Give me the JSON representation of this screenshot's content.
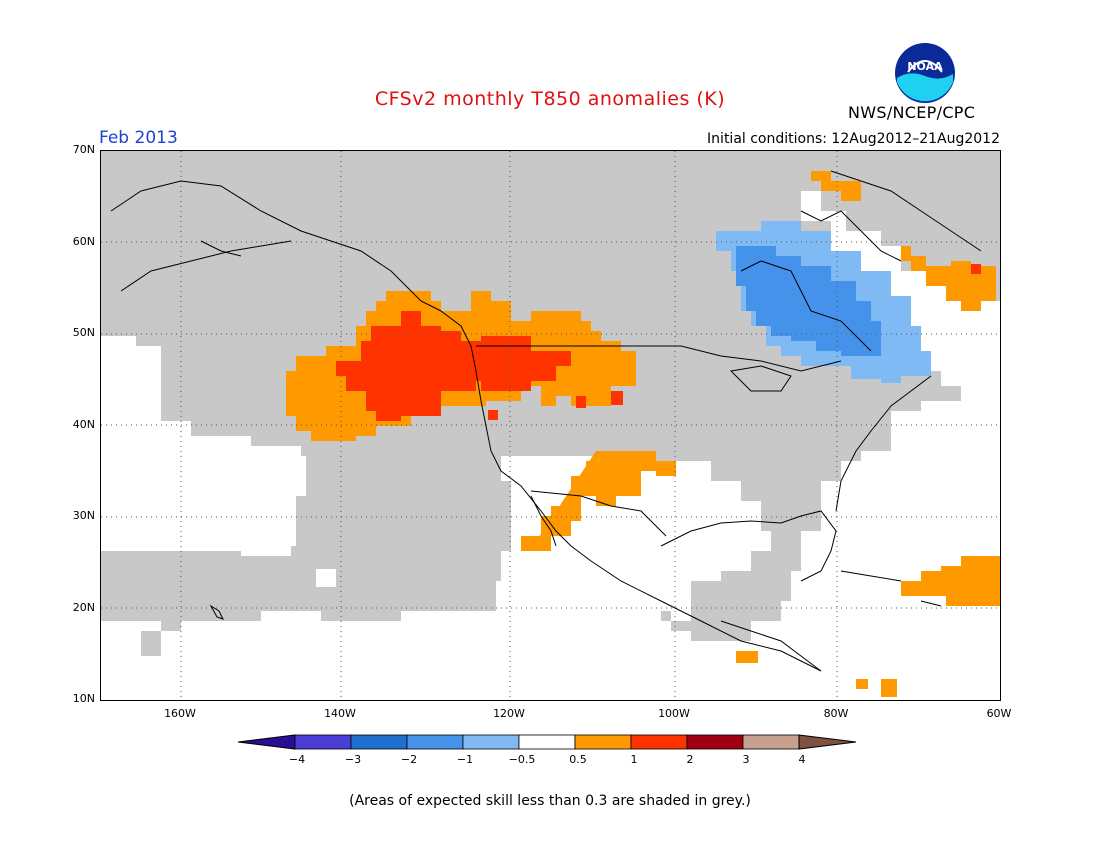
{
  "title": "CFSv2 monthly T850 anomalies (K)",
  "valid_month": "Feb 2013",
  "initial_conditions": "Initial conditions: 12Aug2012–21Aug2012",
  "agency": "NWS/NCEP/CPC",
  "logo_text": "NOAA",
  "footnote": "(Areas of expected skill less than 0.3 are shaded in grey.)",
  "colors": {
    "title": "#e01010",
    "month": "#2040d0",
    "grey_low_skill": "#c8c8c8",
    "neutral": "#ffffff",
    "ocean_land_lines": "#000000"
  },
  "map": {
    "projection": "lat-lon",
    "lon_range": [
      -172,
      -60
    ],
    "lat_range": [
      10,
      70
    ],
    "lat_labels": [
      "70N",
      "60N",
      "50N",
      "40N",
      "30N",
      "20N",
      "10N"
    ],
    "lon_labels": [
      "160W",
      "140W",
      "120W",
      "100W",
      "80W",
      "60W"
    ],
    "gridlines": "dotted",
    "regions": [
      {
        "category": "0.5 to 1",
        "label": "Pacific Northwest / Northern Rockies margin",
        "color": "#ff9900"
      },
      {
        "category": "1 to 2",
        "label": "Pacific Northwest core",
        "color": "#ff3300"
      },
      {
        "category": "0.5 to 1",
        "label": "Southwest US / Baja",
        "color": "#ff9900"
      },
      {
        "category": "-0.5 to -1",
        "label": "Hudson Bay region outer",
        "color": "#7fbaf5"
      },
      {
        "category": "-1 to -2",
        "label": "Hudson Bay region core",
        "color": "#4592ea"
      },
      {
        "category": "0.5 to 1",
        "label": "Labrador coast",
        "color": "#ff9900"
      },
      {
        "category": "0.5 to 1",
        "label": "Subtropical Atlantic",
        "color": "#ff9900"
      }
    ]
  },
  "colorbar": {
    "labels": [
      "−4",
      "−3",
      "−2",
      "−1",
      "−0.5",
      "0.5",
      "1",
      "2",
      "3",
      "4"
    ],
    "segments": [
      "#2b0f91",
      "#4a3ed6",
      "#1f6fd0",
      "#4592ea",
      "#7fbaf5",
      "#ffffff",
      "#ff9900",
      "#ff3300",
      "#a00010",
      "#c8a090",
      "#805040"
    ]
  }
}
